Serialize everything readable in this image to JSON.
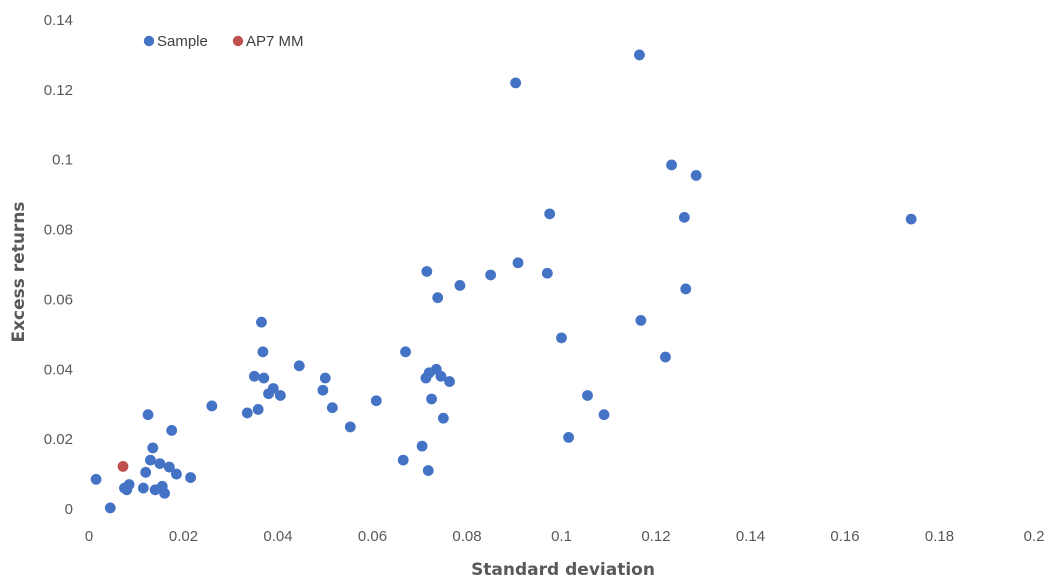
{
  "chart_data": {
    "type": "scatter",
    "xlabel": "Standard deviation",
    "ylabel": "Excess returns",
    "xlim": [
      0,
      0.2
    ],
    "ylim": [
      0,
      0.14
    ],
    "x_ticks": [
      "0",
      "0.02",
      "0.04",
      "0.06",
      "0.08",
      "0.1",
      "0.12",
      "0.14",
      "0.16",
      "0.18",
      "0.2"
    ],
    "y_ticks": [
      "0",
      "0.02",
      "0.04",
      "0.06",
      "0.08",
      "0.1",
      "0.12",
      "0.14"
    ],
    "grid": false,
    "legend_position": "top-left",
    "series": [
      {
        "name": "Sample",
        "color": "#4472C4",
        "points": [
          [
            0.0015,
            0.0085
          ],
          [
            0.0045,
            0.0003
          ],
          [
            0.0075,
            0.006
          ],
          [
            0.008,
            0.0055
          ],
          [
            0.0085,
            0.007
          ],
          [
            0.0115,
            0.006
          ],
          [
            0.012,
            0.0105
          ],
          [
            0.0125,
            0.027
          ],
          [
            0.013,
            0.014
          ],
          [
            0.0135,
            0.0175
          ],
          [
            0.014,
            0.0055
          ],
          [
            0.015,
            0.013
          ],
          [
            0.0155,
            0.0065
          ],
          [
            0.016,
            0.0045
          ],
          [
            0.017,
            0.012
          ],
          [
            0.0175,
            0.0225
          ],
          [
            0.0185,
            0.01
          ],
          [
            0.0215,
            0.009
          ],
          [
            0.026,
            0.0295
          ],
          [
            0.0335,
            0.0275
          ],
          [
            0.035,
            0.038
          ],
          [
            0.0358,
            0.0285
          ],
          [
            0.0365,
            0.0535
          ],
          [
            0.0368,
            0.045
          ],
          [
            0.037,
            0.0375
          ],
          [
            0.038,
            0.033
          ],
          [
            0.039,
            0.0345
          ],
          [
            0.0405,
            0.0325
          ],
          [
            0.0445,
            0.041
          ],
          [
            0.0495,
            0.034
          ],
          [
            0.05,
            0.0375
          ],
          [
            0.0515,
            0.029
          ],
          [
            0.0553,
            0.0235
          ],
          [
            0.0608,
            0.031
          ],
          [
            0.0665,
            0.014
          ],
          [
            0.067,
            0.045
          ],
          [
            0.0705,
            0.018
          ],
          [
            0.0713,
            0.0375
          ],
          [
            0.0715,
            0.068
          ],
          [
            0.0718,
            0.011
          ],
          [
            0.072,
            0.039
          ],
          [
            0.0725,
            0.0315
          ],
          [
            0.0735,
            0.04
          ],
          [
            0.0738,
            0.0605
          ],
          [
            0.0745,
            0.038
          ],
          [
            0.075,
            0.026
          ],
          [
            0.0763,
            0.0365
          ],
          [
            0.0785,
            0.064
          ],
          [
            0.085,
            0.067
          ],
          [
            0.0903,
            0.122
          ],
          [
            0.0908,
            0.0705
          ],
          [
            0.097,
            0.0675
          ],
          [
            0.0975,
            0.0845
          ],
          [
            0.1,
            0.049
          ],
          [
            0.1015,
            0.0205
          ],
          [
            0.1055,
            0.0325
          ],
          [
            0.109,
            0.027
          ],
          [
            0.1165,
            0.13
          ],
          [
            0.1168,
            0.054
          ],
          [
            0.122,
            0.0435
          ],
          [
            0.1233,
            0.0985
          ],
          [
            0.126,
            0.0835
          ],
          [
            0.1263,
            0.063
          ],
          [
            0.1285,
            0.0955
          ],
          [
            0.174,
            0.083
          ]
        ]
      },
      {
        "name": "AP7 MM",
        "color": "#C0504D",
        "points": [
          [
            0.0072,
            0.0122
          ]
        ]
      }
    ]
  }
}
